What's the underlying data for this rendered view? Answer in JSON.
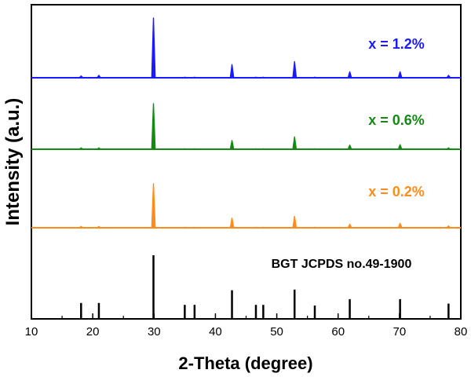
{
  "chart_data": {
    "type": "line",
    "xlabel": "2-Theta (degree)",
    "ylabel": "Intensity (a.u.)",
    "xlim": [
      10,
      80
    ],
    "x_ticks": [
      "10",
      "20",
      "30",
      "40",
      "50",
      "60",
      "70",
      "80"
    ],
    "y_ticks_shown": false,
    "grid": false,
    "legend": "labels placed above each trace on the right",
    "series": [
      {
        "name": "x = 1.2%",
        "color": "#1a1aff",
        "peaks": [
          {
            "x": 18.1,
            "y": 3
          },
          {
            "x": 21.0,
            "y": 4
          },
          {
            "x": 29.9,
            "y": 100
          },
          {
            "x": 35.0,
            "y": 1
          },
          {
            "x": 36.6,
            "y": 1
          },
          {
            "x": 42.7,
            "y": 22
          },
          {
            "x": 46.6,
            "y": 1
          },
          {
            "x": 47.8,
            "y": 1
          },
          {
            "x": 52.9,
            "y": 27
          },
          {
            "x": 56.2,
            "y": 1
          },
          {
            "x": 61.9,
            "y": 10
          },
          {
            "x": 70.1,
            "y": 10
          },
          {
            "x": 78.0,
            "y": 4
          }
        ]
      },
      {
        "name": "x = 0.6%",
        "color": "#138a13",
        "peaks": [
          {
            "x": 18.1,
            "y": 3
          },
          {
            "x": 21.0,
            "y": 3
          },
          {
            "x": 29.9,
            "y": 100
          },
          {
            "x": 35.0,
            "y": 1
          },
          {
            "x": 36.6,
            "y": 1
          },
          {
            "x": 42.7,
            "y": 19
          },
          {
            "x": 46.6,
            "y": 1
          },
          {
            "x": 47.8,
            "y": 1
          },
          {
            "x": 52.9,
            "y": 27
          },
          {
            "x": 56.2,
            "y": 1
          },
          {
            "x": 61.9,
            "y": 9
          },
          {
            "x": 70.1,
            "y": 10
          },
          {
            "x": 78.0,
            "y": 3
          }
        ]
      },
      {
        "name": "x = 0.2%",
        "color": "#ff8c1a",
        "peaks": [
          {
            "x": 18.1,
            "y": 3
          },
          {
            "x": 21.0,
            "y": 3
          },
          {
            "x": 29.9,
            "y": 100
          },
          {
            "x": 35.0,
            "y": 1
          },
          {
            "x": 36.6,
            "y": 1
          },
          {
            "x": 42.7,
            "y": 22
          },
          {
            "x": 46.6,
            "y": 1
          },
          {
            "x": 47.8,
            "y": 1
          },
          {
            "x": 52.9,
            "y": 26
          },
          {
            "x": 56.2,
            "y": 1
          },
          {
            "x": 61.9,
            "y": 8
          },
          {
            "x": 70.1,
            "y": 10
          },
          {
            "x": 78.0,
            "y": 4
          }
        ]
      }
    ],
    "reference": {
      "name": "BGT JCPDS no.49-1900",
      "color": "#000000",
      "lines": [
        {
          "x": 18.1,
          "y": 25
        },
        {
          "x": 21.0,
          "y": 25
        },
        {
          "x": 29.9,
          "y": 100
        },
        {
          "x": 35.0,
          "y": 22
        },
        {
          "x": 36.6,
          "y": 22
        },
        {
          "x": 42.7,
          "y": 45
        },
        {
          "x": 46.6,
          "y": 22
        },
        {
          "x": 47.8,
          "y": 22
        },
        {
          "x": 52.9,
          "y": 46
        },
        {
          "x": 56.2,
          "y": 21
        },
        {
          "x": 61.9,
          "y": 31
        },
        {
          "x": 70.1,
          "y": 31
        },
        {
          "x": 78.0,
          "y": 24
        }
      ]
    }
  }
}
